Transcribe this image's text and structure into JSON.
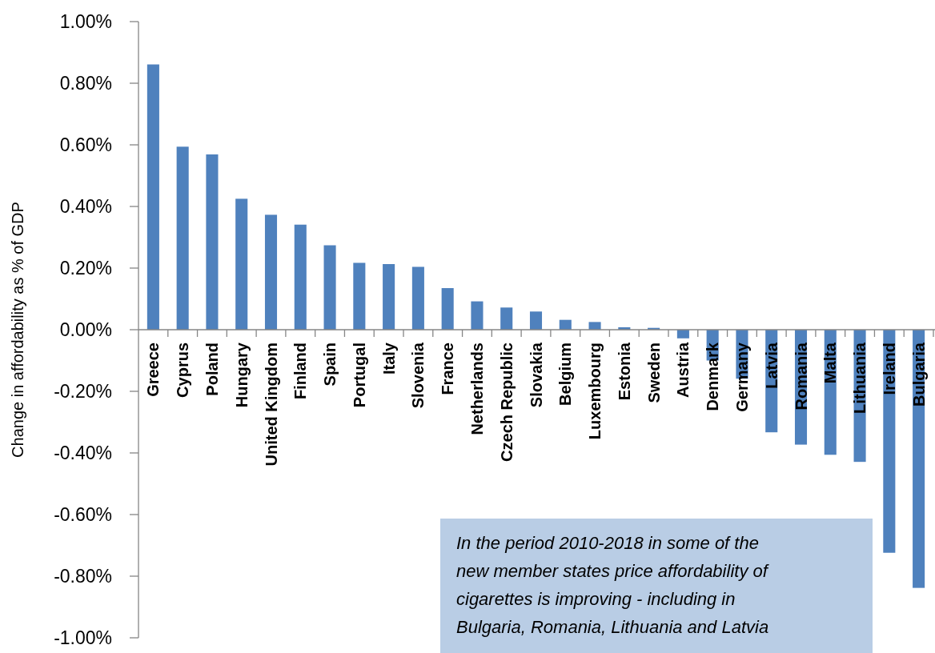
{
  "chart_data": {
    "type": "bar",
    "ylabel": "Change in affordability as % of GDP",
    "categories": [
      "Greece",
      "Cyprus",
      "Poland",
      "Hungary",
      "United Kingdom",
      "Finland",
      "Spain",
      "Portugal",
      "Italy",
      "Slovenia",
      "France",
      "Netherlands",
      "Czech Republic",
      "Slovakia",
      "Belgium",
      "Luxembourg",
      "Estonia",
      "Sweden",
      "Austria",
      "Denmark",
      "Germany",
      "Latvia",
      "Romania",
      "Malta",
      "Lithuania",
      "Ireland",
      "Bulgaria"
    ],
    "values": [
      0.861,
      0.594,
      0.569,
      0.425,
      0.373,
      0.341,
      0.274,
      0.217,
      0.213,
      0.204,
      0.135,
      0.092,
      0.072,
      0.059,
      0.032,
      0.025,
      0.008,
      0.006,
      -0.028,
      -0.1,
      -0.159,
      -0.333,
      -0.373,
      -0.406,
      -0.429,
      -0.724,
      -0.838
    ],
    "color": "#4f81bd",
    "ylim": [
      -1,
      1
    ],
    "yticks": [
      {
        "value": -1,
        "label": "-1.00%"
      },
      {
        "value": -0.8,
        "label": "-0.80%"
      },
      {
        "value": -0.6,
        "label": "-0.60%"
      },
      {
        "value": -0.4,
        "label": "-0.40%"
      },
      {
        "value": -0.2,
        "label": "-0.20%"
      },
      {
        "value": 0,
        "label": "0.00%"
      },
      {
        "value": 0.2,
        "label": "0.20%"
      },
      {
        "value": 0.4,
        "label": "0.40%"
      },
      {
        "value": 0.6,
        "label": "0.60%"
      },
      {
        "value": 0.8,
        "label": "0.80%"
      },
      {
        "value": 1,
        "label": "1.00%"
      }
    ],
    "annotations": [
      "In the period 2010-2018 in some of the new member states price affordability of cigarettes is improving - including in Bulgaria, Romania, Lithuania and Latvia"
    ]
  }
}
